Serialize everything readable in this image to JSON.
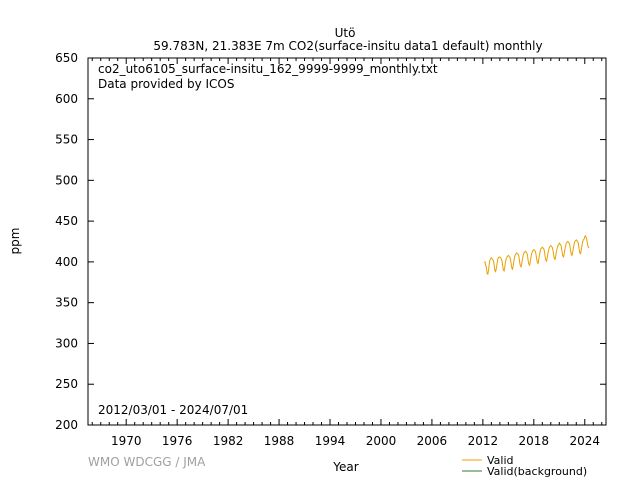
{
  "chart_data": {
    "type": "line",
    "title": "Utö",
    "subtitle": "59.783N, 21.383E 7m    CO2(surface-insitu data1 default) monthly",
    "xlabel": "Year",
    "ylabel": "ppm",
    "xlim": [
      1965.5,
      2026.5
    ],
    "ylim": [
      200,
      650
    ],
    "x_ticks": [
      "1970",
      "1976",
      "1982",
      "1988",
      "1994",
      "2000",
      "2006",
      "2012",
      "2018",
      "2024"
    ],
    "y_ticks": [
      "200",
      "250",
      "300",
      "350",
      "400",
      "450",
      "500",
      "550",
      "600",
      "650"
    ],
    "grid": false,
    "annotations": [
      "co2_uto6105_surface-insitu_162_9999-9999_monthly.txt",
      "Data provided by ICOS"
    ],
    "date_range": "2012/03/01 - 2024/07/01",
    "legend_position": "bottom-right",
    "series": [
      {
        "name": "Valid",
        "color": "#e8a000",
        "x": [
          2012.17,
          2012.25,
          2012.33,
          2012.42,
          2012.5,
          2012.58,
          2012.67,
          2012.75,
          2012.83,
          2012.92,
          2013.0,
          2013.08,
          2013.17,
          2013.25,
          2013.33,
          2013.42,
          2013.5,
          2013.58,
          2013.67,
          2013.75,
          2013.83,
          2013.92,
          2014.0,
          2014.08,
          2014.17,
          2014.25,
          2014.33,
          2014.42,
          2014.5,
          2014.58,
          2014.67,
          2014.75,
          2014.83,
          2014.92,
          2015.0,
          2015.08,
          2015.17,
          2015.25,
          2015.33,
          2015.42,
          2015.5,
          2015.58,
          2015.67,
          2015.75,
          2015.83,
          2015.92,
          2016.0,
          2016.08,
          2016.17,
          2016.25,
          2016.33,
          2016.42,
          2016.5,
          2016.58,
          2016.67,
          2016.75,
          2016.83,
          2016.92,
          2017.0,
          2017.08,
          2017.17,
          2017.25,
          2017.33,
          2017.42,
          2017.5,
          2017.58,
          2017.67,
          2017.75,
          2017.83,
          2017.92,
          2018.0,
          2018.08,
          2018.17,
          2018.25,
          2018.33,
          2018.42,
          2018.5,
          2018.58,
          2018.67,
          2018.75,
          2018.83,
          2018.92,
          2019.0,
          2019.08,
          2019.17,
          2019.25,
          2019.33,
          2019.42,
          2019.5,
          2019.58,
          2019.67,
          2019.75,
          2019.83,
          2019.92,
          2020.0,
          2020.08,
          2020.17,
          2020.25,
          2020.33,
          2020.42,
          2020.5,
          2020.58,
          2020.67,
          2020.75,
          2020.83,
          2020.92,
          2021.0,
          2021.08,
          2021.17,
          2021.25,
          2021.33,
          2021.42,
          2021.5,
          2021.58,
          2021.67,
          2021.75,
          2021.83,
          2021.92,
          2022.0,
          2022.08,
          2022.17,
          2022.25,
          2022.33,
          2022.42,
          2022.5,
          2022.58,
          2022.67,
          2022.75,
          2022.83,
          2022.92,
          2023.0,
          2023.08,
          2023.17,
          2023.25,
          2023.33,
          2023.42,
          2023.5,
          2023.58,
          2023.67,
          2023.75,
          2023.83,
          2023.92,
          2024.0,
          2024.08,
          2024.17,
          2024.25,
          2024.33,
          2024.42,
          2024.5
        ],
        "y": [
          399,
          400,
          396,
          393,
          386,
          385,
          390,
          397,
          402,
          404,
          405,
          404,
          403,
          401,
          396,
          389,
          388,
          392,
          398,
          403,
          405,
          406,
          406,
          405,
          404,
          401,
          395,
          390,
          389,
          394,
          400,
          404,
          406,
          407,
          408,
          407,
          406,
          403,
          398,
          392,
          391,
          396,
          402,
          406,
          409,
          410,
          411,
          410,
          409,
          406,
          400,
          395,
          394,
          398,
          404,
          408,
          411,
          412,
          413,
          412,
          411,
          408,
          402,
          397,
          396,
          400,
          406,
          410,
          413,
          414,
          415,
          414,
          413,
          410,
          404,
          399,
          398,
          403,
          409,
          413,
          416,
          417,
          418,
          417,
          416,
          413,
          407,
          402,
          401,
          405,
          411,
          415,
          418,
          419,
          420,
          419,
          418,
          415,
          409,
          404,
          403,
          407,
          413,
          417,
          420,
          421,
          423,
          422,
          421,
          418,
          412,
          407,
          406,
          410,
          416,
          420,
          423,
          424,
          425,
          424,
          423,
          420,
          414,
          409,
          408,
          412,
          418,
          422,
          425,
          426,
          427,
          426,
          425,
          422,
          416,
          411,
          410,
          414,
          420,
          424,
          427,
          428,
          431,
          432,
          430,
          427,
          421,
          418,
          417
        ]
      },
      {
        "name": "Valid(background)",
        "color": "#2e7d32",
        "x": [],
        "y": []
      }
    ]
  },
  "footer": {
    "credit": "WMO WDCGG / JMA"
  }
}
